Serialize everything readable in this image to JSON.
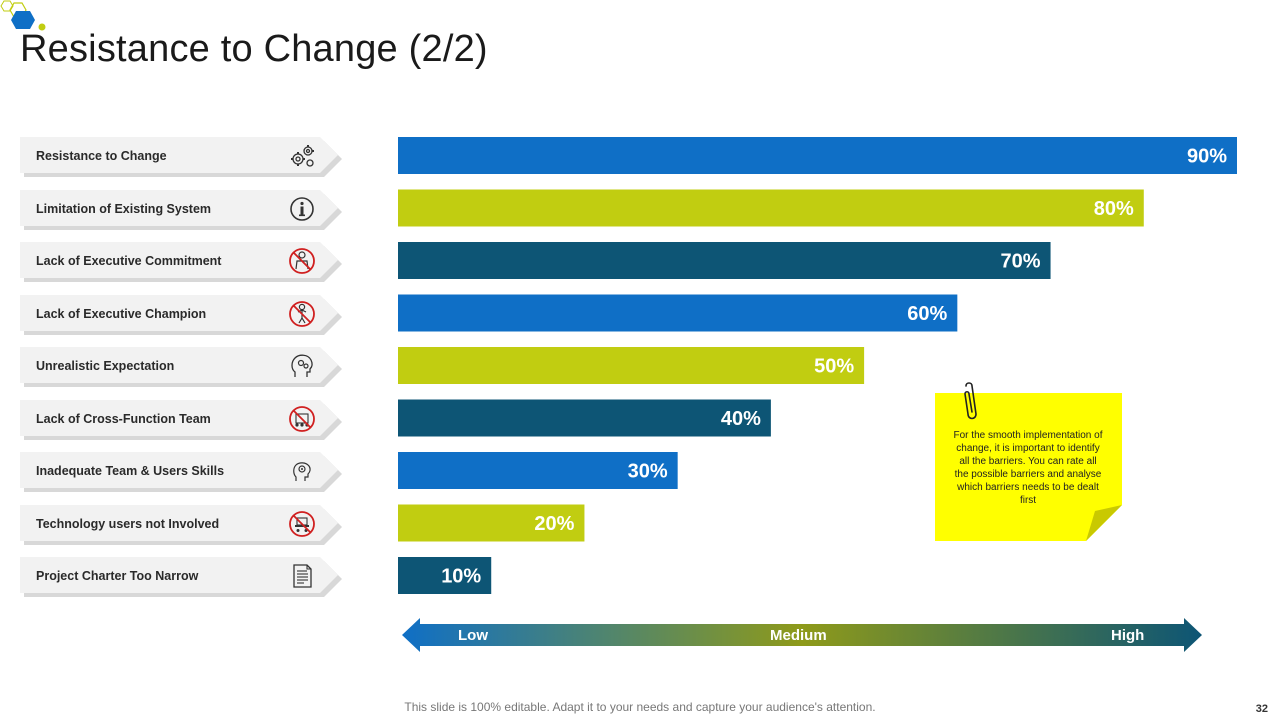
{
  "title": "Resistance to Change (2/2)",
  "colors": {
    "blue": "#0f6fc6",
    "lime": "#c1cd11",
    "navy": "#0d5575",
    "note": "#ffff00"
  },
  "labels": [
    {
      "text": "Resistance to Change",
      "icon": "gears-icon"
    },
    {
      "text": "Limitation of Existing System",
      "icon": "info-icon"
    },
    {
      "text": "Lack of Executive Commitment",
      "icon": "no-executive-icon"
    },
    {
      "text": "Lack of Executive Champion",
      "icon": "no-champion-icon"
    },
    {
      "text": "Unrealistic Expectation",
      "icon": "head-gears-icon"
    },
    {
      "text": "Lack of Cross-Function  Team",
      "icon": "no-team-icon"
    },
    {
      "text": "Inadequate Team & Users Skills",
      "icon": "head-gear-icon"
    },
    {
      "text": "Technology  users not Involved",
      "icon": "no-users-icon"
    },
    {
      "text": "Project Charter Too Narrow",
      "icon": "document-icon"
    }
  ],
  "chart_data": {
    "type": "bar",
    "orientation": "horizontal",
    "categories": [
      "Resistance to Change",
      "Limitation of Existing System",
      "Lack of Executive Commitment",
      "Lack of Executive Champion",
      "Unrealistic Expectation",
      "Lack of Cross-Function  Team",
      "Inadequate Team & Users Skills",
      "Technology  users not Involved",
      "Project Charter Too Narrow"
    ],
    "values": [
      90,
      80,
      70,
      60,
      50,
      40,
      30,
      20,
      10
    ],
    "data_labels": [
      "90%",
      "80%",
      "70%",
      "60%",
      "50%",
      "40%",
      "30%",
      "20%",
      "10%"
    ],
    "bar_colors": [
      "#0f6fc6",
      "#c1cd11",
      "#0d5575",
      "#0f6fc6",
      "#c1cd11",
      "#0d5575",
      "#0f6fc6",
      "#c1cd11",
      "#0d5575"
    ],
    "xlim": [
      0,
      90
    ],
    "title": "",
    "xlabel": "",
    "ylabel": ""
  },
  "note": {
    "text": "For the smooth implementation of change, it is important to identify all the barriers. You can rate all the possible barriers and analyse which barriers needs to be dealt  first"
  },
  "scale": {
    "low": "Low",
    "medium": "Medium",
    "high": "High"
  },
  "footer": "This slide is 100% editable. Adapt it to your needs and capture your audience's attention.",
  "page_number": "32"
}
